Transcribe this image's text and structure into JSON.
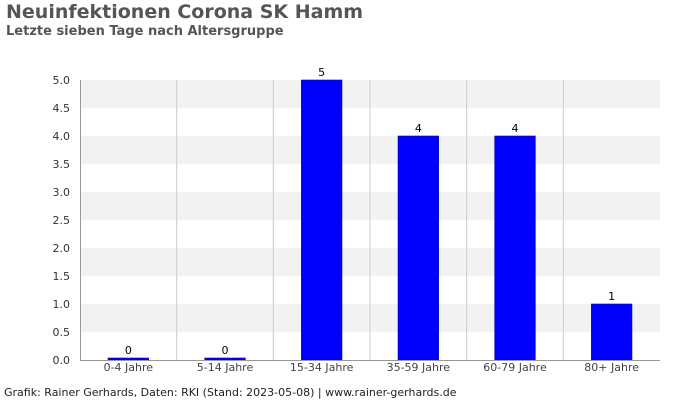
{
  "chart_data": {
    "type": "bar",
    "title": "Neuinfektionen Corona SK Hamm",
    "subtitle": "Letzte sieben Tage nach Altersgruppe",
    "categories": [
      "0-4 Jahre",
      "5-14 Jahre",
      "15-34 Jahre",
      "35-59 Jahre",
      "60-79 Jahre",
      "80+ Jahre"
    ],
    "values": [
      0,
      0,
      5,
      4,
      4,
      1
    ],
    "value_labels": [
      "0",
      "0",
      "5",
      "4",
      "4",
      "1"
    ],
    "ylim": [
      0,
      5
    ],
    "yticks": [
      "0.0",
      "0.5",
      "1.0",
      "1.5",
      "2.0",
      "2.5",
      "3.0",
      "3.5",
      "4.0",
      "4.5",
      "5.0"
    ],
    "xlabel": "",
    "ylabel": "",
    "grid": true,
    "bar_color": "#0000ff"
  },
  "footer": "Grafik: Rainer Gerhards, Daten: RKI (Stand: 2023-05-08) | www.rainer-gerhards.de"
}
